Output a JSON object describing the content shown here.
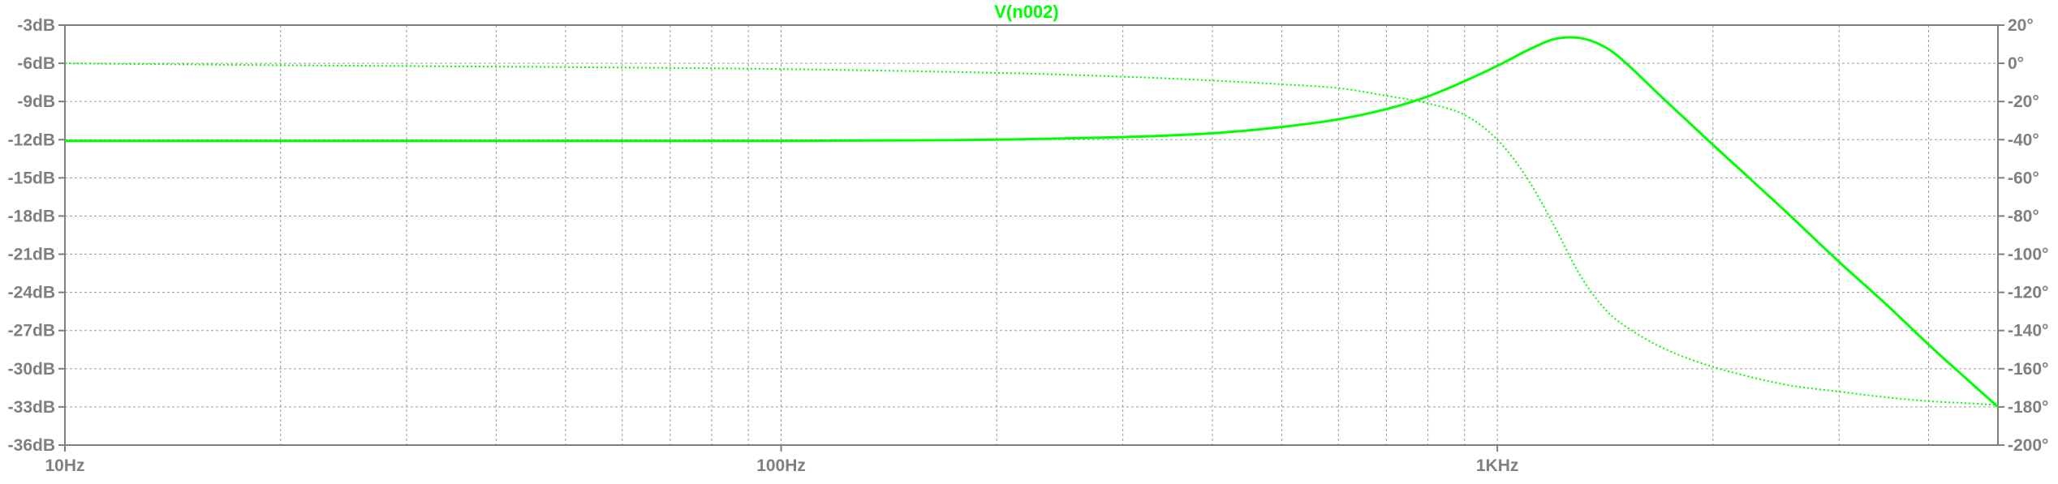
{
  "chart_data": {
    "type": "line",
    "title": "V(n002)",
    "x_scale": "log",
    "x_unit": "Hz",
    "xlim": [
      10,
      5000
    ],
    "x_ticks": [
      {
        "value": 10,
        "label": "10Hz"
      },
      {
        "value": 100,
        "label": "100Hz"
      },
      {
        "value": 1000,
        "label": "1KHz"
      }
    ],
    "y_left": {
      "unit": "dB",
      "ylim": [
        -36,
        -3
      ],
      "ticks": [
        -3,
        -6,
        -9,
        -12,
        -15,
        -18,
        -21,
        -24,
        -27,
        -30,
        -33,
        -36
      ],
      "tick_labels": [
        "-3dB",
        "-6dB",
        "-9dB",
        "-12dB",
        "-15dB",
        "-18dB",
        "-21dB",
        "-24dB",
        "-27dB",
        "-30dB",
        "-33dB",
        "-36dB"
      ]
    },
    "y_right": {
      "unit": "°",
      "ylim": [
        -200,
        20
      ],
      "ticks": [
        20,
        0,
        -20,
        -40,
        -60,
        -80,
        -100,
        -120,
        -140,
        -160,
        -180,
        -200
      ],
      "tick_labels": [
        "20°",
        "0°",
        "-20°",
        "-40°",
        "-60°",
        "-80°",
        "-100°",
        "-120°",
        "-140°",
        "-160°",
        "-180°",
        "-200°"
      ]
    },
    "grid": true,
    "trace_color": "#00ff00",
    "series": [
      {
        "name": "V(n002)",
        "quantity": "magnitude",
        "axis": "left",
        "style": "solid",
        "points": [
          [
            10,
            -12.1
          ],
          [
            20,
            -12.1
          ],
          [
            50,
            -12.1
          ],
          [
            100,
            -12.1
          ],
          [
            150,
            -12.05
          ],
          [
            200,
            -12.0
          ],
          [
            300,
            -11.8
          ],
          [
            400,
            -11.5
          ],
          [
            500,
            -11.0
          ],
          [
            600,
            -10.4
          ],
          [
            700,
            -9.6
          ],
          [
            800,
            -8.6
          ],
          [
            900,
            -7.4
          ],
          [
            1000,
            -6.2
          ],
          [
            1100,
            -5.0
          ],
          [
            1200,
            -4.1
          ],
          [
            1300,
            -4.0
          ],
          [
            1400,
            -4.6
          ],
          [
            1500,
            -5.8
          ],
          [
            1700,
            -8.7
          ],
          [
            2000,
            -12.4
          ],
          [
            2500,
            -17.4
          ],
          [
            3000,
            -21.6
          ],
          [
            3500,
            -25.0
          ],
          [
            4000,
            -28.1
          ],
          [
            4500,
            -30.7
          ],
          [
            5000,
            -33.0
          ]
        ]
      },
      {
        "name": "V(n002)",
        "quantity": "phase",
        "axis": "right",
        "style": "dotted",
        "points": [
          [
            10,
            0
          ],
          [
            20,
            -1
          ],
          [
            50,
            -2
          ],
          [
            100,
            -3
          ],
          [
            200,
            -5
          ],
          [
            300,
            -7
          ],
          [
            400,
            -9
          ],
          [
            500,
            -11
          ],
          [
            600,
            -13
          ],
          [
            700,
            -17
          ],
          [
            800,
            -21
          ],
          [
            900,
            -27
          ],
          [
            1000,
            -40
          ],
          [
            1100,
            -60
          ],
          [
            1200,
            -85
          ],
          [
            1300,
            -110
          ],
          [
            1400,
            -127
          ],
          [
            1500,
            -137
          ],
          [
            1700,
            -149
          ],
          [
            2000,
            -159
          ],
          [
            2500,
            -168
          ],
          [
            3000,
            -172
          ],
          [
            3500,
            -175
          ],
          [
            4000,
            -177
          ],
          [
            4500,
            -178
          ],
          [
            5000,
            -179
          ]
        ]
      }
    ]
  }
}
